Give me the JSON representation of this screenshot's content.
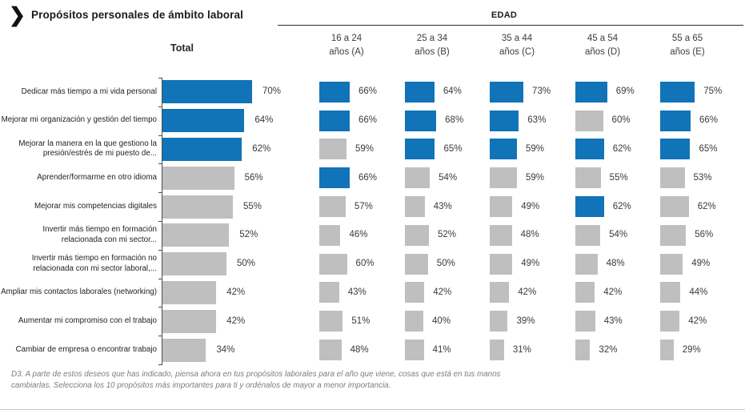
{
  "title": "Propósitos personales de ámbito laboral",
  "header": {
    "group_label": "EDAD",
    "total_label": "Total",
    "age_columns": [
      {
        "line1": "16 a 24",
        "line2": "años (A)"
      },
      {
        "line1": "25 a 34",
        "line2": "años (B)"
      },
      {
        "line1": "35 a 44",
        "line2": "años (C)"
      },
      {
        "line1": "45 a 54",
        "line2": "años (D)"
      },
      {
        "line1": "55 a 65",
        "line2": "años (E)"
      }
    ]
  },
  "colors": {
    "highlight": "#1173B8",
    "muted": "#BFBFBF"
  },
  "footnote": "D3. A parte de estos deseos que has indicado, piensa ahora en tus propósitos laborales para el año que viene, cosas que está en tus manos cambiarlas. Selecciona los 10 propósitos más importantes para ti y ordénalos de mayor a menor importancia.",
  "chart_data": {
    "type": "bar",
    "title": "Propósitos personales de ámbito laboral",
    "unit": "%",
    "xlim": [
      0,
      100
    ],
    "categories": [
      "Dedicar más tiempo a mi vida personal",
      "Mejorar mi organización y gestión del tiempo",
      "Mejorar la manera en la que gestiono la presión/estrés de mi puesto de...",
      "Aprender/formarme en otro idioma",
      "Mejorar mis competencias digitales",
      "Invertir más tiempo en formación relacionada con mi sector...",
      "Invertir más tiempo en formación no relacionada con mi sector laboral,...",
      "Ampliar mis contactos laborales (networking)",
      "Aumentar mi compromiso con el trabajo",
      "Cambiar de empresa o encontrar trabajo"
    ],
    "series": [
      {
        "name": "Total",
        "values": [
          70,
          64,
          62,
          56,
          55,
          52,
          50,
          42,
          42,
          34
        ],
        "highlighted": [
          true,
          true,
          true,
          false,
          false,
          false,
          false,
          false,
          false,
          false
        ]
      },
      {
        "name": "16 a 24 años (A)",
        "values": [
          66,
          66,
          59,
          66,
          57,
          46,
          60,
          43,
          51,
          48
        ],
        "highlighted": [
          true,
          true,
          false,
          true,
          false,
          false,
          false,
          false,
          false,
          false
        ]
      },
      {
        "name": "25 a 34 años (B)",
        "values": [
          64,
          68,
          65,
          54,
          43,
          52,
          50,
          42,
          40,
          41
        ],
        "highlighted": [
          true,
          true,
          true,
          false,
          false,
          false,
          false,
          false,
          false,
          false
        ]
      },
      {
        "name": "35 a 44 años (C)",
        "values": [
          73,
          63,
          59,
          59,
          49,
          48,
          49,
          42,
          39,
          31
        ],
        "highlighted": [
          true,
          true,
          true,
          false,
          false,
          false,
          false,
          false,
          false,
          false
        ]
      },
      {
        "name": "45 a 54 años (D)",
        "values": [
          69,
          60,
          62,
          55,
          62,
          54,
          48,
          42,
          43,
          32
        ],
        "highlighted": [
          true,
          false,
          true,
          false,
          true,
          false,
          false,
          false,
          false,
          false
        ]
      },
      {
        "name": "55 a 65 años (E)",
        "values": [
          75,
          66,
          65,
          53,
          62,
          56,
          49,
          44,
          42,
          29
        ],
        "highlighted": [
          true,
          true,
          true,
          false,
          false,
          false,
          false,
          false,
          false,
          false
        ]
      }
    ]
  }
}
